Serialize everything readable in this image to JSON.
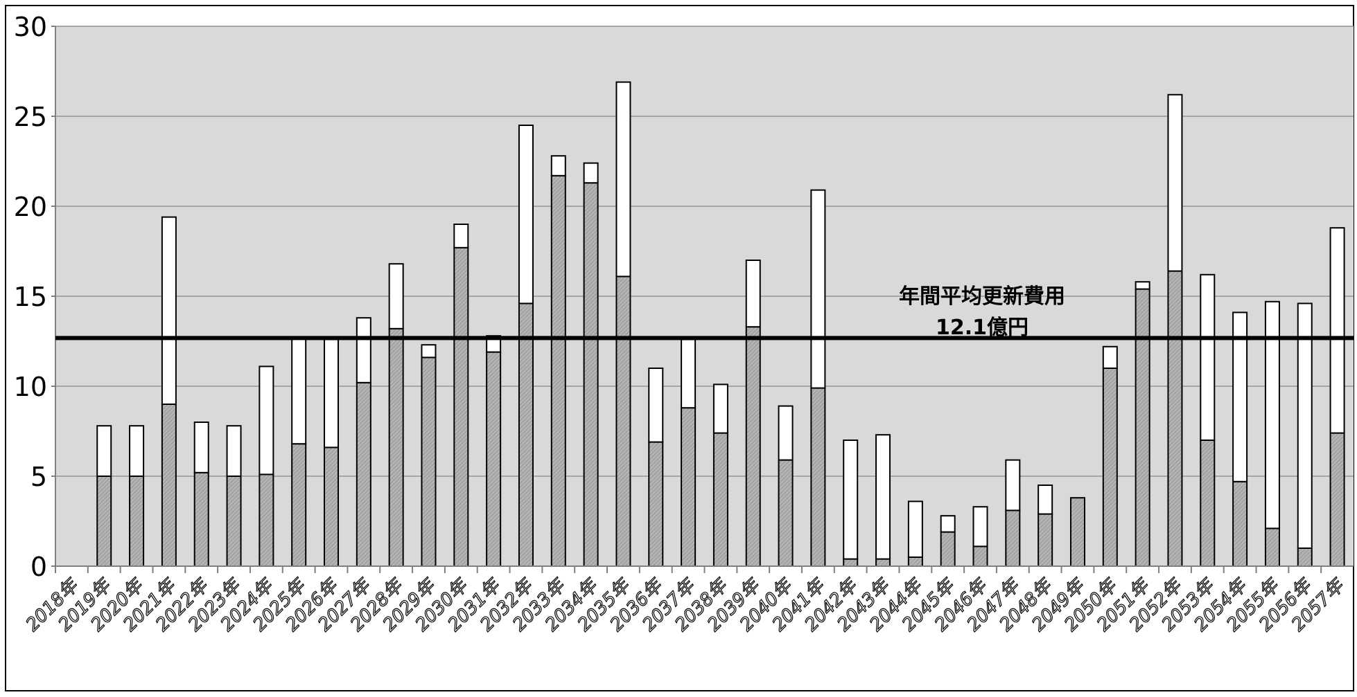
{
  "chart_data": {
    "type": "bar",
    "stacked": true,
    "categories": [
      "2018年",
      "2019年",
      "2020年",
      "2021年",
      "2022年",
      "2023年",
      "2024年",
      "2025年",
      "2026年",
      "2027年",
      "2028年",
      "2029年",
      "2030年",
      "2031年",
      "2032年",
      "2033年",
      "2034年",
      "2035年",
      "2036年",
      "2037年",
      "2038年",
      "2039年",
      "2040年",
      "2041年",
      "2042年",
      "2043年",
      "2044年",
      "2045年",
      "2046年",
      "2047年",
      "2048年",
      "2049年",
      "2050年",
      "2051年",
      "2052年",
      "2053年",
      "2054年",
      "2055年",
      "2056年",
      "2057年"
    ],
    "series": [
      {
        "color": "#b4b4b4",
        "pattern": "hatched",
        "values": [
          0,
          5.0,
          5.0,
          9.0,
          5.2,
          5.0,
          5.1,
          6.8,
          6.6,
          10.2,
          13.2,
          11.6,
          17.7,
          11.9,
          14.6,
          21.7,
          21.3,
          16.1,
          6.9,
          8.8,
          7.4,
          13.3,
          5.9,
          9.9,
          0.4,
          0.4,
          0.5,
          1.9,
          1.1,
          3.1,
          2.9,
          3.8,
          11.0,
          15.4,
          16.4,
          7.0,
          4.7,
          2.1,
          1.0,
          7.4
        ]
      },
      {
        "color": "#ffffff",
        "values": [
          0,
          2.8,
          2.8,
          10.4,
          2.8,
          2.8,
          6.0,
          5.9,
          6.0,
          3.6,
          3.6,
          0.7,
          1.3,
          0.9,
          9.9,
          1.1,
          1.1,
          10.8,
          4.1,
          3.8,
          2.7,
          3.7,
          3.0,
          11.0,
          6.6,
          6.9,
          3.1,
          0.9,
          2.2,
          2.8,
          1.6,
          0,
          1.2,
          0.4,
          9.8,
          9.2,
          9.4,
          12.6,
          13.6,
          11.4
        ]
      }
    ],
    "average_line": {
      "value": 12.1,
      "label_line1": "年間平均更新費用",
      "label_line2": "12.1億円"
    },
    "ylim": [
      0,
      30
    ],
    "yticks": [
      0,
      5,
      10,
      15,
      20,
      25,
      30
    ],
    "grid": true,
    "colors": {
      "plot_background": "#d9d9d9",
      "gridline": "#a6a6a6",
      "bar_outline": "#000000",
      "average_line": "#000000"
    }
  }
}
